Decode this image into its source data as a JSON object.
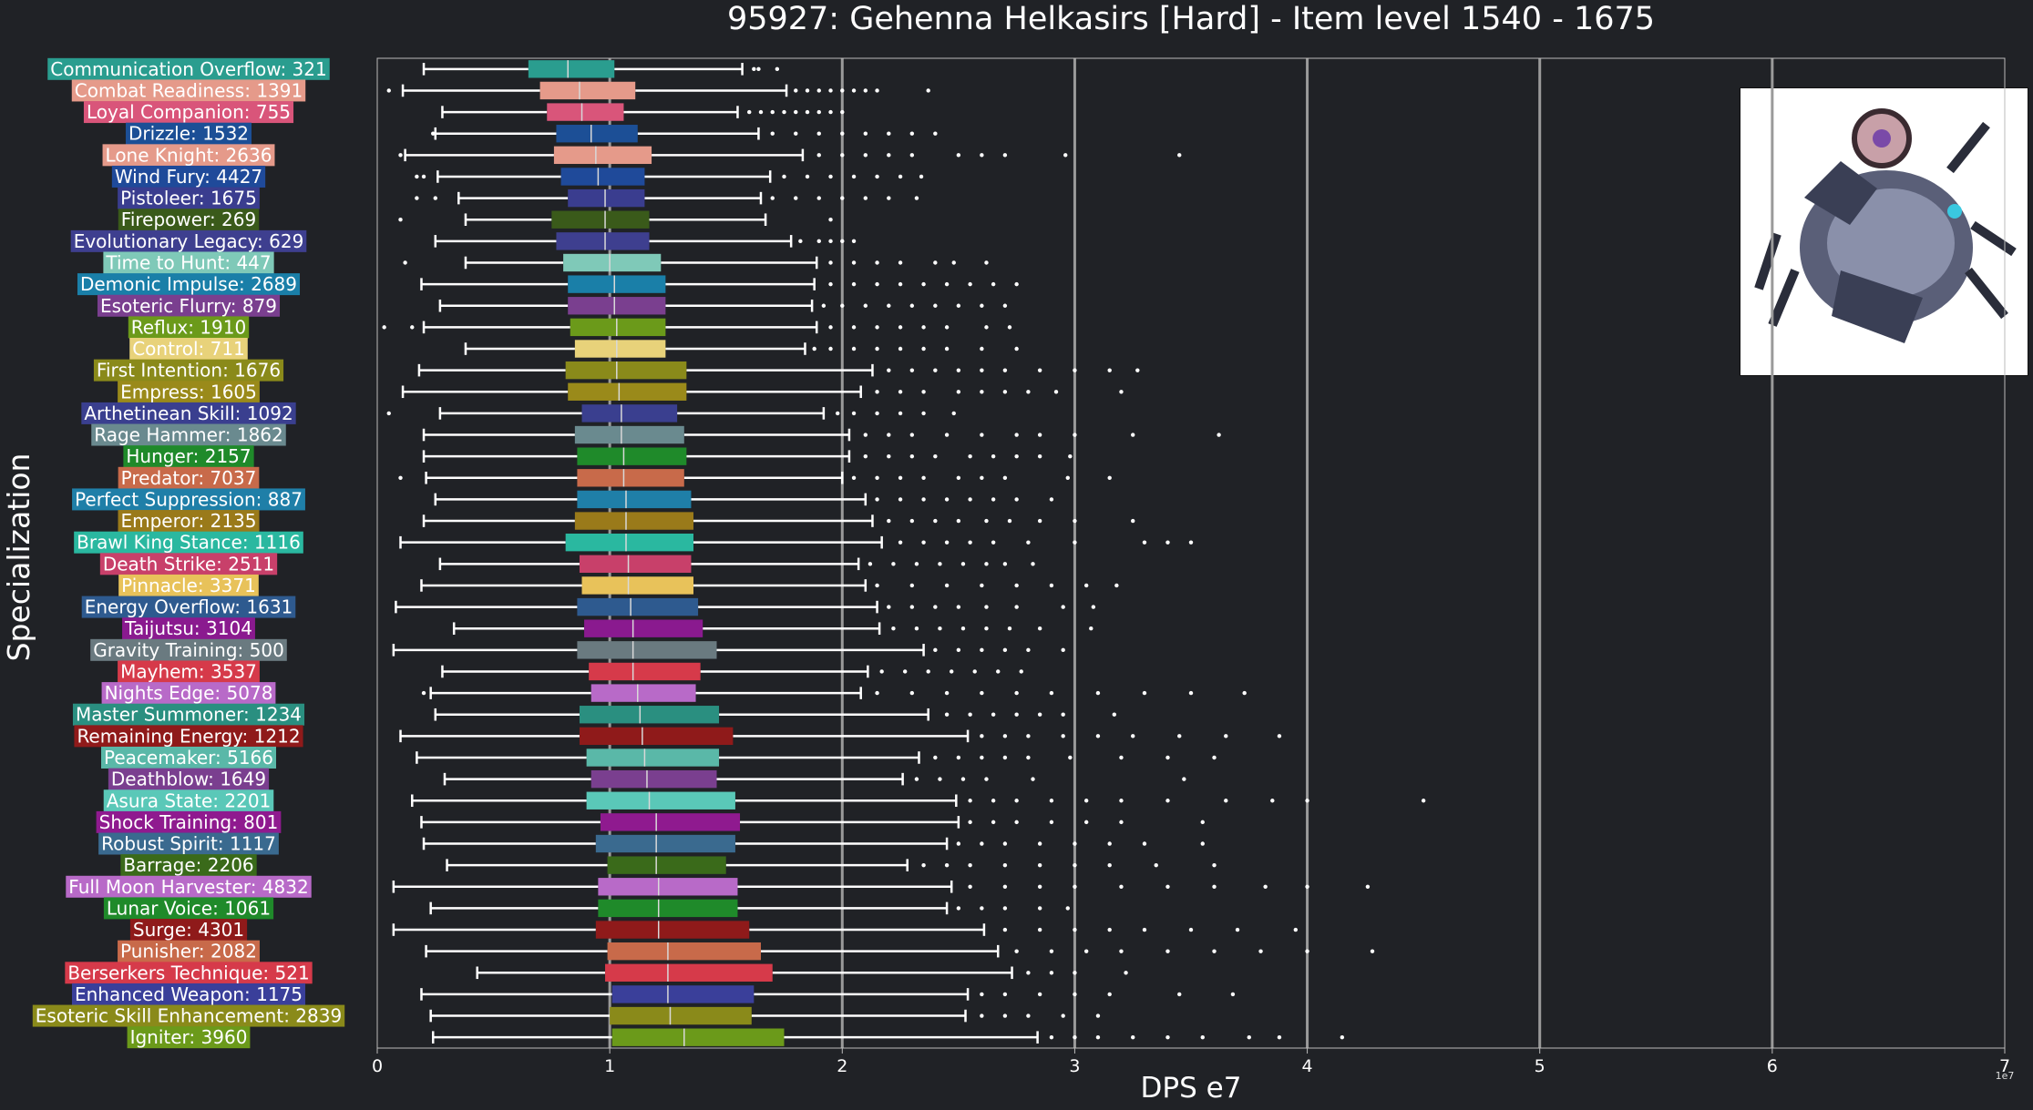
{
  "chart_data": {
    "type": "box",
    "title": "95927: Gehenna Helkasirs [Hard] - Item level 1540 - 1675",
    "xlabel": "DPS e7",
    "ylabel": "Specialization",
    "x_scale_note": "1e7",
    "xlim": [
      0,
      7
    ],
    "xticks": [
      0,
      1,
      2,
      3,
      4,
      5,
      6,
      7
    ],
    "grid": "vertical",
    "legend": "none",
    "series": [
      {
        "label": "Communication Overflow: 321",
        "color": "#2a9d8f",
        "whisker_low": 0.2,
        "q1": 0.65,
        "median": 0.82,
        "q3": 1.02,
        "whisker_high": 1.57,
        "outliers": [
          1.62,
          1.64,
          1.72
        ]
      },
      {
        "label": "Combat Readiness: 1391",
        "color": "#e59a8a",
        "whisker_low": 0.11,
        "q1": 0.7,
        "median": 0.87,
        "q3": 1.11,
        "whisker_high": 1.76,
        "outliers": [
          0.05,
          1.8,
          1.85,
          1.9,
          1.95,
          2.0,
          2.05,
          2.1,
          2.15,
          2.37
        ]
      },
      {
        "label": "Loyal Companion: 755",
        "color": "#d9557a",
        "whisker_low": 0.28,
        "q1": 0.73,
        "median": 0.88,
        "q3": 1.06,
        "whisker_high": 1.55,
        "outliers": [
          1.6,
          1.65,
          1.7,
          1.75,
          1.8,
          1.85,
          1.9,
          1.95,
          2.0
        ]
      },
      {
        "label": "Drizzle: 1532",
        "color": "#1c4f96",
        "whisker_low": 0.25,
        "q1": 0.77,
        "median": 0.92,
        "q3": 1.12,
        "whisker_high": 1.64,
        "outliers": [
          0.24,
          1.7,
          1.8,
          1.9,
          2.0,
          2.1,
          2.2,
          2.3,
          2.4
        ]
      },
      {
        "label": "Lone Knight: 2636",
        "color": "#e59a8a",
        "whisker_low": 0.12,
        "q1": 0.76,
        "median": 0.94,
        "q3": 1.18,
        "whisker_high": 1.83,
        "outliers": [
          0.1,
          1.9,
          2.0,
          2.1,
          2.2,
          2.3,
          2.5,
          2.6,
          2.7,
          2.96,
          3.45
        ]
      },
      {
        "label": "Wind Fury: 4427",
        "color": "#1f4a9a",
        "whisker_low": 0.26,
        "q1": 0.79,
        "median": 0.95,
        "q3": 1.15,
        "whisker_high": 1.69,
        "outliers": [
          0.17,
          0.2,
          1.75,
          1.85,
          1.95,
          2.05,
          2.15,
          2.25,
          2.34
        ]
      },
      {
        "label": "Pistoleer: 1675",
        "color": "#3a3d8f",
        "whisker_low": 0.35,
        "q1": 0.82,
        "median": 0.98,
        "q3": 1.15,
        "whisker_high": 1.65,
        "outliers": [
          0.17,
          0.25,
          1.7,
          1.8,
          1.9,
          2.0,
          2.1,
          2.2,
          2.32
        ]
      },
      {
        "label": "Firepower: 269",
        "color": "#3a5a1a",
        "whisker_low": 0.38,
        "q1": 0.75,
        "median": 0.98,
        "q3": 1.17,
        "whisker_high": 1.67,
        "outliers": [
          0.1,
          1.95
        ]
      },
      {
        "label": "Evolutionary Legacy: 629",
        "color": "#3e3f8f",
        "whisker_low": 0.25,
        "q1": 0.77,
        "median": 0.98,
        "q3": 1.17,
        "whisker_high": 1.78,
        "outliers": [
          1.82,
          1.9,
          1.95,
          2.0,
          2.05
        ]
      },
      {
        "label": "Time to Hunt: 447",
        "color": "#7fc9b8",
        "whisker_low": 0.38,
        "q1": 0.8,
        "median": 1.0,
        "q3": 1.22,
        "whisker_high": 1.89,
        "outliers": [
          0.12,
          1.95,
          2.05,
          2.15,
          2.25,
          2.4,
          2.48,
          2.62
        ]
      },
      {
        "label": "Demonic Impulse: 2689",
        "color": "#1a7fa8",
        "whisker_low": 0.19,
        "q1": 0.82,
        "median": 1.02,
        "q3": 1.24,
        "whisker_high": 1.88,
        "outliers": [
          1.95,
          2.05,
          2.15,
          2.25,
          2.35,
          2.45,
          2.55,
          2.65,
          2.75
        ]
      },
      {
        "label": "Esoteric Flurry: 879",
        "color": "#7a3f8f",
        "whisker_low": 0.27,
        "q1": 0.82,
        "median": 1.02,
        "q3": 1.24,
        "whisker_high": 1.87,
        "outliers": [
          1.92,
          2.0,
          2.1,
          2.2,
          2.3,
          2.4,
          2.5,
          2.6,
          2.7
        ]
      },
      {
        "label": "Reflux: 1910",
        "color": "#6b9a1a",
        "whisker_low": 0.2,
        "q1": 0.83,
        "median": 1.03,
        "q3": 1.24,
        "whisker_high": 1.89,
        "outliers": [
          0.03,
          0.15,
          1.95,
          2.05,
          2.15,
          2.25,
          2.35,
          2.45,
          2.62,
          2.72
        ]
      },
      {
        "label": "Control: 711",
        "color": "#e8d27a",
        "whisker_low": 0.38,
        "q1": 0.85,
        "median": 1.03,
        "q3": 1.24,
        "whisker_high": 1.84,
        "outliers": [
          1.88,
          1.95,
          2.05,
          2.15,
          2.25,
          2.35,
          2.45,
          2.6,
          2.75
        ]
      },
      {
        "label": "First Intention: 1676",
        "color": "#8a8a1a",
        "whisker_low": 0.18,
        "q1": 0.81,
        "median": 1.03,
        "q3": 1.33,
        "whisker_high": 2.13,
        "outliers": [
          2.2,
          2.3,
          2.4,
          2.5,
          2.6,
          2.7,
          2.85,
          3.0,
          3.15,
          3.27
        ]
      },
      {
        "label": "Empress: 1605",
        "color": "#9a8a1a",
        "whisker_low": 0.11,
        "q1": 0.82,
        "median": 1.04,
        "q3": 1.33,
        "whisker_high": 2.08,
        "outliers": [
          2.15,
          2.25,
          2.35,
          2.5,
          2.6,
          2.7,
          2.8,
          2.92,
          3.2
        ]
      },
      {
        "label": "Arthetinean Skill: 1092",
        "color": "#3a3f8f",
        "whisker_low": 0.27,
        "q1": 0.88,
        "median": 1.05,
        "q3": 1.29,
        "whisker_high": 1.92,
        "outliers": [
          0.05,
          1.98,
          2.05,
          2.15,
          2.25,
          2.35,
          2.48
        ]
      },
      {
        "label": "Rage Hammer: 1862",
        "color": "#6a8a8f",
        "whisker_low": 0.2,
        "q1": 0.85,
        "median": 1.05,
        "q3": 1.32,
        "whisker_high": 2.03,
        "outliers": [
          2.1,
          2.2,
          2.3,
          2.45,
          2.6,
          2.75,
          2.85,
          3.0,
          3.25,
          3.62
        ]
      },
      {
        "label": "Hunger: 2157",
        "color": "#1f8a2a",
        "whisker_low": 0.2,
        "q1": 0.86,
        "median": 1.06,
        "q3": 1.33,
        "whisker_high": 2.03,
        "outliers": [
          2.1,
          2.2,
          2.3,
          2.4,
          2.55,
          2.65,
          2.75,
          2.85,
          2.98
        ]
      },
      {
        "label": "Predator: 7037",
        "color": "#c86a4a",
        "whisker_low": 0.21,
        "q1": 0.86,
        "median": 1.06,
        "q3": 1.32,
        "whisker_high": 2.0,
        "outliers": [
          0.1,
          2.05,
          2.15,
          2.25,
          2.35,
          2.5,
          2.6,
          2.7,
          2.97,
          3.15
        ]
      },
      {
        "label": "Perfect Suppression: 887",
        "color": "#1f7fa8",
        "whisker_low": 0.25,
        "q1": 0.86,
        "median": 1.07,
        "q3": 1.35,
        "whisker_high": 2.1,
        "outliers": [
          2.15,
          2.25,
          2.35,
          2.45,
          2.55,
          2.65,
          2.75,
          2.9
        ]
      },
      {
        "label": "Emperor: 2135",
        "color": "#9a7a1a",
        "whisker_low": 0.2,
        "q1": 0.85,
        "median": 1.07,
        "q3": 1.36,
        "whisker_high": 2.13,
        "outliers": [
          2.2,
          2.3,
          2.4,
          2.5,
          2.62,
          2.72,
          2.85,
          3.0,
          3.25
        ]
      },
      {
        "label": "Brawl King Stance: 1116",
        "color": "#2ab8a0",
        "whisker_low": 0.1,
        "q1": 0.81,
        "median": 1.07,
        "q3": 1.36,
        "whisker_high": 2.17,
        "outliers": [
          2.25,
          2.35,
          2.45,
          2.55,
          2.65,
          2.8,
          3.0,
          3.3,
          3.4,
          3.5
        ]
      },
      {
        "label": "Death Strike: 2511",
        "color": "#c8406a",
        "whisker_low": 0.27,
        "q1": 0.87,
        "median": 1.08,
        "q3": 1.35,
        "whisker_high": 2.07,
        "outliers": [
          2.12,
          2.22,
          2.32,
          2.42,
          2.52,
          2.62,
          2.7,
          2.82
        ]
      },
      {
        "label": "Pinnacle: 3371",
        "color": "#e8c25a",
        "whisker_low": 0.19,
        "q1": 0.88,
        "median": 1.08,
        "q3": 1.36,
        "whisker_high": 2.1,
        "outliers": [
          2.15,
          2.3,
          2.45,
          2.6,
          2.75,
          2.9,
          3.05,
          3.18
        ]
      },
      {
        "label": "Energy Overflow: 1631",
        "color": "#2e5a8f",
        "whisker_low": 0.08,
        "q1": 0.86,
        "median": 1.09,
        "q3": 1.38,
        "whisker_high": 2.15,
        "outliers": [
          2.2,
          2.3,
          2.4,
          2.5,
          2.62,
          2.75,
          2.95,
          3.08
        ]
      },
      {
        "label": "Taijutsu: 3104",
        "color": "#8a1a8f",
        "whisker_low": 0.33,
        "q1": 0.89,
        "median": 1.1,
        "q3": 1.4,
        "whisker_high": 2.16,
        "outliers": [
          2.22,
          2.32,
          2.42,
          2.52,
          2.62,
          2.72,
          2.85,
          3.07
        ]
      },
      {
        "label": "Gravity Training: 500",
        "color": "#6a7a80",
        "whisker_low": 0.07,
        "q1": 0.86,
        "median": 1.1,
        "q3": 1.46,
        "whisker_high": 2.35,
        "outliers": [
          2.4,
          2.5,
          2.6,
          2.7,
          2.8,
          2.95
        ]
      },
      {
        "label": "Mayhem: 3537",
        "color": "#d63a4a",
        "whisker_low": 0.28,
        "q1": 0.91,
        "median": 1.1,
        "q3": 1.39,
        "whisker_high": 2.11,
        "outliers": [
          2.17,
          2.27,
          2.37,
          2.47,
          2.57,
          2.67,
          2.77
        ]
      },
      {
        "label": "Nights Edge: 5078",
        "color": "#b86ac8",
        "whisker_low": 0.23,
        "q1": 0.92,
        "median": 1.12,
        "q3": 1.37,
        "whisker_high": 2.08,
        "outliers": [
          0.2,
          2.15,
          2.3,
          2.45,
          2.6,
          2.75,
          2.9,
          3.1,
          3.3,
          3.5,
          3.73
        ]
      },
      {
        "label": "Master Summoner: 1234",
        "color": "#2a8f80",
        "whisker_low": 0.25,
        "q1": 0.87,
        "median": 1.13,
        "q3": 1.47,
        "whisker_high": 2.37,
        "outliers": [
          2.45,
          2.55,
          2.65,
          2.75,
          2.85,
          2.95,
          3.17
        ]
      },
      {
        "label": "Remaining Energy: 1212",
        "color": "#8f1a1a",
        "whisker_low": 0.1,
        "q1": 0.87,
        "median": 1.14,
        "q3": 1.53,
        "whisker_high": 2.54,
        "outliers": [
          2.6,
          2.7,
          2.8,
          2.95,
          3.1,
          3.25,
          3.45,
          3.65,
          3.88
        ]
      },
      {
        "label": "Peacemaker: 5166",
        "color": "#5ab8a8",
        "whisker_low": 0.17,
        "q1": 0.9,
        "median": 1.15,
        "q3": 1.47,
        "whisker_high": 2.33,
        "outliers": [
          2.4,
          2.5,
          2.6,
          2.7,
          2.8,
          2.98,
          3.2,
          3.4,
          3.6
        ]
      },
      {
        "label": "Deathblow: 1649",
        "color": "#7a3f8f",
        "whisker_low": 0.29,
        "q1": 0.92,
        "median": 1.16,
        "q3": 1.46,
        "whisker_high": 2.26,
        "outliers": [
          2.32,
          2.42,
          2.52,
          2.62,
          2.82,
          3.47
        ]
      },
      {
        "label": "Asura State: 2201",
        "color": "#5ac8b8",
        "whisker_low": 0.15,
        "q1": 0.9,
        "median": 1.17,
        "q3": 1.54,
        "whisker_high": 2.49,
        "outliers": [
          2.55,
          2.65,
          2.75,
          2.9,
          3.05,
          3.2,
          3.4,
          3.65,
          3.85,
          4.0,
          4.5
        ]
      },
      {
        "label": "Shock Training: 801",
        "color": "#8f1a8f",
        "whisker_low": 0.19,
        "q1": 0.96,
        "median": 1.2,
        "q3": 1.56,
        "whisker_high": 2.5,
        "outliers": [
          2.55,
          2.65,
          2.75,
          2.9,
          3.05,
          3.2,
          3.55
        ]
      },
      {
        "label": "Robust Spirit: 1117",
        "color": "#3a6a8f",
        "whisker_low": 0.2,
        "q1": 0.94,
        "median": 1.2,
        "q3": 1.54,
        "whisker_high": 2.45,
        "outliers": [
          2.5,
          2.6,
          2.7,
          2.85,
          3.0,
          3.15,
          3.3,
          3.55
        ]
      },
      {
        "label": "Barrage: 2206",
        "color": "#3a6a1a",
        "whisker_low": 0.3,
        "q1": 0.99,
        "median": 1.2,
        "q3": 1.5,
        "whisker_high": 2.28,
        "outliers": [
          2.35,
          2.45,
          2.55,
          2.7,
          2.85,
          3.0,
          3.15,
          3.35,
          3.6
        ]
      },
      {
        "label": "Full Moon Harvester: 4832",
        "color": "#b86ac8",
        "whisker_low": 0.07,
        "q1": 0.95,
        "median": 1.21,
        "q3": 1.55,
        "whisker_high": 2.47,
        "outliers": [
          2.55,
          2.7,
          2.85,
          3.0,
          3.2,
          3.4,
          3.6,
          3.82,
          4.0,
          4.26
        ]
      },
      {
        "label": "Lunar Voice: 1061",
        "color": "#1f8a2a",
        "whisker_low": 0.23,
        "q1": 0.95,
        "median": 1.21,
        "q3": 1.55,
        "whisker_high": 2.45,
        "outliers": [
          2.5,
          2.6,
          2.7,
          2.85,
          2.97
        ]
      },
      {
        "label": "Surge: 4301",
        "color": "#8f1a1a",
        "whisker_low": 0.07,
        "q1": 0.94,
        "median": 1.21,
        "q3": 1.6,
        "whisker_high": 2.61,
        "outliers": [
          2.7,
          2.85,
          3.0,
          3.15,
          3.3,
          3.5,
          3.7,
          3.95
        ]
      },
      {
        "label": "Punisher: 2082",
        "color": "#c86a4a",
        "whisker_low": 0.21,
        "q1": 0.99,
        "median": 1.25,
        "q3": 1.65,
        "whisker_high": 2.67,
        "outliers": [
          2.75,
          2.9,
          3.05,
          3.2,
          3.4,
          3.6,
          3.8,
          4.0,
          4.28
        ]
      },
      {
        "label": "Berserkers Technique: 521",
        "color": "#d63a4a",
        "whisker_low": 0.43,
        "q1": 0.98,
        "median": 1.25,
        "q3": 1.7,
        "whisker_high": 2.73,
        "outliers": [
          2.8,
          2.9,
          3.0,
          3.22
        ]
      },
      {
        "label": "Enhanced Weapon: 1175",
        "color": "#3a3f9a",
        "whisker_low": 0.19,
        "q1": 1.01,
        "median": 1.25,
        "q3": 1.62,
        "whisker_high": 2.54,
        "outliers": [
          2.6,
          2.7,
          2.85,
          3.0,
          3.15,
          3.45,
          3.68
        ]
      },
      {
        "label": "Esoteric Skill Enhancement: 2839",
        "color": "#8a8a1a",
        "whisker_low": 0.23,
        "q1": 1.0,
        "median": 1.26,
        "q3": 1.61,
        "whisker_high": 2.53,
        "outliers": [
          2.6,
          2.7,
          2.8,
          2.95,
          3.1
        ]
      },
      {
        "label": "Igniter: 3960",
        "color": "#6b9a1a",
        "whisker_low": 0.24,
        "q1": 1.01,
        "median": 1.32,
        "q3": 1.75,
        "whisker_high": 2.84,
        "outliers": [
          2.9,
          3.0,
          3.1,
          3.25,
          3.4,
          3.55,
          3.75,
          3.88,
          4.15
        ]
      }
    ]
  },
  "boss_image": {
    "icon": "boss-portrait-icon"
  },
  "colors": {
    "background": "#202226",
    "grid": "#9a9a9a",
    "text": "#ffffff",
    "axis": "#bbbbbb"
  }
}
